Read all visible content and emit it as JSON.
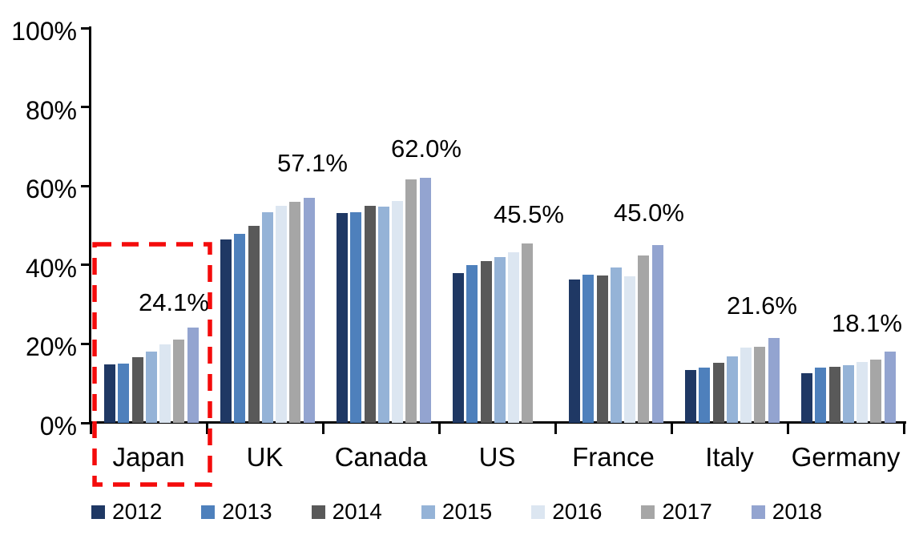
{
  "chart_data": {
    "type": "bar",
    "title": "",
    "xlabel": "",
    "ylabel": "",
    "categories": [
      "Japan",
      "UK",
      "Canada",
      "US",
      "France",
      "Italy",
      "Germany"
    ],
    "series": [
      {
        "name": "2012",
        "color": "#1F3864",
        "values": [
          14.8,
          46.4,
          53.1,
          38.0,
          36.4,
          13.3,
          12.6
        ]
      },
      {
        "name": "2013",
        "color": "#4E80BC",
        "values": [
          15.0,
          47.8,
          53.4,
          39.9,
          37.6,
          14.1,
          14.0
        ]
      },
      {
        "name": "2014",
        "color": "#595959",
        "values": [
          16.6,
          50.0,
          55.0,
          40.9,
          37.4,
          15.3,
          14.3
        ]
      },
      {
        "name": "2015",
        "color": "#95B3D7",
        "values": [
          18.0,
          53.3,
          54.8,
          41.9,
          39.3,
          16.9,
          14.7
        ]
      },
      {
        "name": "2016",
        "color": "#DCE6F1",
        "values": [
          19.9,
          54.9,
          56.2,
          43.3,
          37.2,
          19.0,
          15.4
        ]
      },
      {
        "name": "2017",
        "color": "#A6A6A6",
        "values": [
          21.0,
          56.0,
          61.7,
          45.5,
          42.4,
          19.2,
          16.0
        ]
      },
      {
        "name": "2018",
        "color": "#93A4D0",
        "values": [
          24.1,
          57.1,
          62.0,
          null,
          45.0,
          21.6,
          18.1
        ]
      }
    ],
    "data_labels": [
      "24.1%",
      "57.1%",
      "62.0%",
      "45.5%",
      "45.0%",
      "21.6%",
      "18.1%"
    ],
    "y_ticks": [
      "0%",
      "20%",
      "40%",
      "60%",
      "80%",
      "100%"
    ],
    "ylim": [
      0,
      100
    ],
    "grid": false,
    "legend_position": "bottom",
    "legend_entries": [
      "2012",
      "2013",
      "2014",
      "2015",
      "2016",
      "2017",
      "2018"
    ],
    "highlight": {
      "category": "Japan",
      "style": "dashed-box",
      "color": "#F40B0B"
    }
  }
}
